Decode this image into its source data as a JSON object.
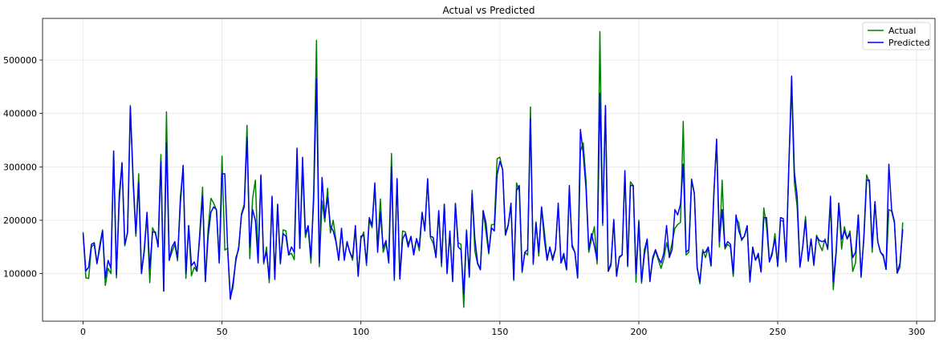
{
  "chart_data": {
    "type": "line",
    "title": "Actual vs Predicted",
    "xlabel": "",
    "ylabel": "",
    "xlim": [
      -14.6,
      306.6
    ],
    "ylim": [
      11000,
      578000
    ],
    "xticks": [
      0,
      50,
      100,
      150,
      200,
      250,
      300
    ],
    "yticks": [
      100000,
      200000,
      300000,
      400000,
      500000
    ],
    "grid": true,
    "legend_position": "top-right",
    "colors": {
      "Actual": "#008000",
      "Predicted": "#0000ff"
    },
    "series": [
      {
        "name": "Actual",
        "color": "#008000",
        "values": [
          178000,
          92000,
          91000,
          150000,
          155000,
          118000,
          155000,
          182000,
          78000,
          110000,
          100000,
          326000,
          92000,
          250000,
          306000,
          152000,
          176000,
          415000,
          270000,
          170000,
          287000,
          101000,
          140000,
          210000,
          83000,
          186000,
          175000,
          155000,
          323000,
          68000,
          403000,
          125000,
          141000,
          155000,
          124000,
          244000,
          297000,
          91000,
          190000,
          96000,
          112000,
          104000,
          178000,
          262000,
          86000,
          184000,
          241000,
          232000,
          219000,
          122000,
          320000,
          144000,
          148000,
          55000,
          75000,
          131000,
          145000,
          212000,
          230000,
          378000,
          128000,
          240000,
          275000,
          130000,
          282000,
          118000,
          150000,
          83000,
          242000,
          94000,
          229000,
          118000,
          182000,
          180000,
          135000,
          138000,
          126000,
          324000,
          147000,
          298000,
          168000,
          187000,
          120000,
          256000,
          537000,
          113000,
          236000,
          197000,
          260000,
          176000,
          200000,
          163000,
          126000,
          180000,
          129000,
          158000,
          140000,
          125000,
          183000,
          96000,
          165000,
          178000,
          115000,
          200000,
          186000,
          265000,
          150000,
          240000,
          140000,
          156000,
          130000,
          325000,
          87000,
          277000,
          90000,
          180000,
          178000,
          155000,
          168000,
          139000,
          166000,
          143000,
          211000,
          186000,
          275000,
          168000,
          157000,
          132000,
          216000,
          113000,
          230000,
          103000,
          175000,
          90000,
          232000,
          158000,
          155000,
          37000,
          182000,
          93000,
          256000,
          142000,
          118000,
          107000,
          218000,
          178000,
          137000,
          192000,
          192000,
          315000,
          318000,
          294000,
          175000,
          192000,
          226000,
          87000,
          270000,
          255000,
          102000,
          140000,
          135000,
          412000,
          117000,
          197000,
          133000,
          225000,
          180000,
          130000,
          147000,
          130000,
          146000,
          229000,
          120000,
          133000,
          107000,
          255000,
          155000,
          140000,
          92000,
          330000,
          345000,
          275000,
          140000,
          165000,
          188000,
          118000,
          553000,
          190000,
          412000,
          104000,
          115000,
          202000,
          97000,
          132000,
          135000,
          288000,
          113000,
          272000,
          265000,
          84000,
          200000,
          82000,
          145000,
          164000,
          90000,
          125000,
          143000,
          126000,
          110000,
          127000,
          158000,
          135000,
          158000,
          185000,
          192000,
          196000,
          385000,
          135000,
          140000,
          273000,
          250000,
          111000,
          81000,
          145000,
          130000,
          148000,
          114000,
          250000,
          348000,
          150000,
          275000,
          146000,
          155000,
          150000,
          95000,
          205000,
          195000,
          162000,
          170000,
          188000,
          84000,
          145000,
          126000,
          133000,
          103000,
          223000,
          187000,
          122000,
          135000,
          175000,
          113000,
          200000,
          198000,
          125000,
          302000,
          450000,
          270000,
          225000,
          113000,
          150000,
          207000,
          123000,
          165000,
          115000,
          172000,
          155000,
          143000,
          165000,
          145000,
          233000,
          70000,
          135000,
          232000,
          146000,
          188000,
          165000,
          180000,
          104000,
          120000,
          210000,
          93000,
          170000,
          285000,
          270000,
          140000,
          232000,
          160000,
          140000,
          132000,
          108000,
          220000,
          217000,
          195000,
          101000,
          112000,
          196000
        ]
      },
      {
        "name": "Predicted",
        "color": "#0000ff",
        "values": [
          175000,
          105000,
          112000,
          155000,
          158000,
          120000,
          148000,
          180000,
          92000,
          125000,
          110000,
          330000,
          98000,
          235000,
          308000,
          155000,
          178000,
          412000,
          280000,
          175000,
          270000,
          100000,
          145000,
          215000,
          110000,
          178000,
          178000,
          150000,
          310000,
          67000,
          345000,
          125000,
          150000,
          160000,
          130000,
          230000,
          303000,
          100000,
          190000,
          115000,
          122000,
          106000,
          170000,
          245000,
          85000,
          170000,
          215000,
          225000,
          220000,
          120000,
          287000,
          287000,
          150000,
          52000,
          85000,
          125000,
          150000,
          210000,
          225000,
          355000,
          150000,
          220000,
          200000,
          120000,
          285000,
          122000,
          140000,
          90000,
          245000,
          89000,
          230000,
          120000,
          175000,
          170000,
          135000,
          150000,
          140000,
          335000,
          148000,
          318000,
          175000,
          190000,
          130000,
          240000,
          465000,
          120000,
          280000,
          205000,
          243000,
          190000,
          180000,
          160000,
          125000,
          185000,
          125000,
          160000,
          140000,
          130000,
          190000,
          95000,
          170000,
          172000,
          120000,
          205000,
          190000,
          270000,
          140000,
          215000,
          148000,
          162000,
          120000,
          300000,
          90000,
          278000,
          90000,
          165000,
          175000,
          150000,
          170000,
          135000,
          165000,
          150000,
          215000,
          180000,
          278000,
          170000,
          168000,
          130000,
          218000,
          120000,
          230000,
          100000,
          180000,
          85000,
          230000,
          150000,
          145000,
          62000,
          180000,
          95000,
          250000,
          165000,
          120000,
          108000,
          218000,
          195000,
          140000,
          186000,
          180000,
          285000,
          310000,
          295000,
          172000,
          190000,
          232000,
          90000,
          256000,
          265000,
          105000,
          140000,
          145000,
          390000,
          120000,
          195000,
          140000,
          225000,
          165000,
          125000,
          150000,
          125000,
          145000,
          232000,
          120000,
          138000,
          108000,
          265000,
          150000,
          140000,
          92000,
          370000,
          325000,
          260000,
          145000,
          175000,
          152000,
          125000,
          438000,
          195000,
          415000,
          105000,
          120000,
          200000,
          95000,
          130000,
          135000,
          293000,
          115000,
          265000,
          265000,
          100000,
          197000,
          85000,
          135000,
          165000,
          85000,
          130000,
          145000,
          130000,
          120000,
          138000,
          190000,
          130000,
          145000,
          220000,
          210000,
          230000,
          305000,
          140000,
          145000,
          277000,
          250000,
          112000,
          85000,
          140000,
          140000,
          150000,
          115000,
          245000,
          352000,
          160000,
          220000,
          150000,
          160000,
          155000,
          100000,
          210000,
          180000,
          165000,
          170000,
          190000,
          86000,
          150000,
          125000,
          138000,
          103000,
          205000,
          205000,
          122000,
          140000,
          165000,
          115000,
          205000,
          203000,
          122000,
          300000,
          470000,
          290000,
          245000,
          112000,
          150000,
          200000,
          125000,
          165000,
          118000,
          170000,
          162000,
          160000,
          162000,
          148000,
          245000,
          85000,
          140000,
          232000,
          165000,
          180000,
          165000,
          175000,
          130000,
          140000,
          210000,
          95000,
          165000,
          275000,
          275000,
          150000,
          235000,
          160000,
          140000,
          135000,
          108000,
          305000,
          220000,
          198000,
          101000,
          120000,
          183000
        ]
      }
    ]
  }
}
